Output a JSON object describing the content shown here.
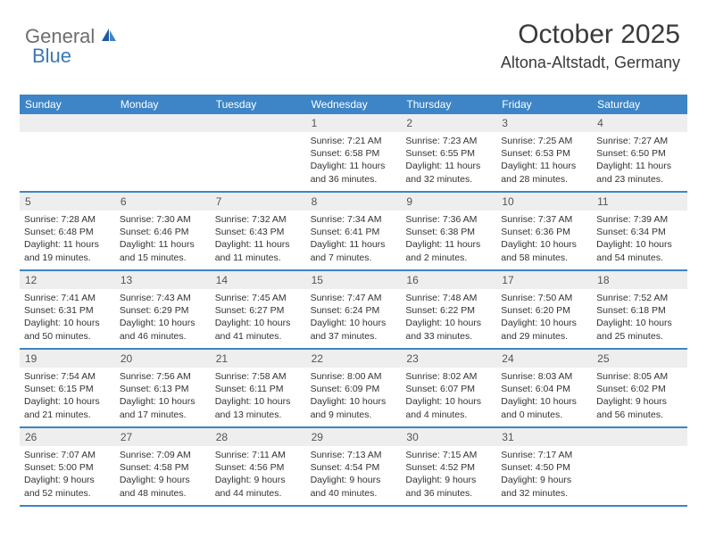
{
  "logo": {
    "text1": "General",
    "text2": "Blue"
  },
  "header": {
    "month_title": "October 2025",
    "location": "Altona-Altstadt, Germany"
  },
  "colors": {
    "header_bg": "#3d85c6",
    "header_text": "#ffffff",
    "daynum_bg": "#eeeeee",
    "border": "#3d85c6",
    "logo_gray": "#6e6e6e",
    "logo_blue": "#3b78b5"
  },
  "day_headers": [
    "Sunday",
    "Monday",
    "Tuesday",
    "Wednesday",
    "Thursday",
    "Friday",
    "Saturday"
  ],
  "weeks": [
    [
      {
        "num": "",
        "sunrise": "",
        "sunset": "",
        "daylight": ""
      },
      {
        "num": "",
        "sunrise": "",
        "sunset": "",
        "daylight": ""
      },
      {
        "num": "",
        "sunrise": "",
        "sunset": "",
        "daylight": ""
      },
      {
        "num": "1",
        "sunrise": "Sunrise: 7:21 AM",
        "sunset": "Sunset: 6:58 PM",
        "daylight": "Daylight: 11 hours and 36 minutes."
      },
      {
        "num": "2",
        "sunrise": "Sunrise: 7:23 AM",
        "sunset": "Sunset: 6:55 PM",
        "daylight": "Daylight: 11 hours and 32 minutes."
      },
      {
        "num": "3",
        "sunrise": "Sunrise: 7:25 AM",
        "sunset": "Sunset: 6:53 PM",
        "daylight": "Daylight: 11 hours and 28 minutes."
      },
      {
        "num": "4",
        "sunrise": "Sunrise: 7:27 AM",
        "sunset": "Sunset: 6:50 PM",
        "daylight": "Daylight: 11 hours and 23 minutes."
      }
    ],
    [
      {
        "num": "5",
        "sunrise": "Sunrise: 7:28 AM",
        "sunset": "Sunset: 6:48 PM",
        "daylight": "Daylight: 11 hours and 19 minutes."
      },
      {
        "num": "6",
        "sunrise": "Sunrise: 7:30 AM",
        "sunset": "Sunset: 6:46 PM",
        "daylight": "Daylight: 11 hours and 15 minutes."
      },
      {
        "num": "7",
        "sunrise": "Sunrise: 7:32 AM",
        "sunset": "Sunset: 6:43 PM",
        "daylight": "Daylight: 11 hours and 11 minutes."
      },
      {
        "num": "8",
        "sunrise": "Sunrise: 7:34 AM",
        "sunset": "Sunset: 6:41 PM",
        "daylight": "Daylight: 11 hours and 7 minutes."
      },
      {
        "num": "9",
        "sunrise": "Sunrise: 7:36 AM",
        "sunset": "Sunset: 6:38 PM",
        "daylight": "Daylight: 11 hours and 2 minutes."
      },
      {
        "num": "10",
        "sunrise": "Sunrise: 7:37 AM",
        "sunset": "Sunset: 6:36 PM",
        "daylight": "Daylight: 10 hours and 58 minutes."
      },
      {
        "num": "11",
        "sunrise": "Sunrise: 7:39 AM",
        "sunset": "Sunset: 6:34 PM",
        "daylight": "Daylight: 10 hours and 54 minutes."
      }
    ],
    [
      {
        "num": "12",
        "sunrise": "Sunrise: 7:41 AM",
        "sunset": "Sunset: 6:31 PM",
        "daylight": "Daylight: 10 hours and 50 minutes."
      },
      {
        "num": "13",
        "sunrise": "Sunrise: 7:43 AM",
        "sunset": "Sunset: 6:29 PM",
        "daylight": "Daylight: 10 hours and 46 minutes."
      },
      {
        "num": "14",
        "sunrise": "Sunrise: 7:45 AM",
        "sunset": "Sunset: 6:27 PM",
        "daylight": "Daylight: 10 hours and 41 minutes."
      },
      {
        "num": "15",
        "sunrise": "Sunrise: 7:47 AM",
        "sunset": "Sunset: 6:24 PM",
        "daylight": "Daylight: 10 hours and 37 minutes."
      },
      {
        "num": "16",
        "sunrise": "Sunrise: 7:48 AM",
        "sunset": "Sunset: 6:22 PM",
        "daylight": "Daylight: 10 hours and 33 minutes."
      },
      {
        "num": "17",
        "sunrise": "Sunrise: 7:50 AM",
        "sunset": "Sunset: 6:20 PM",
        "daylight": "Daylight: 10 hours and 29 minutes."
      },
      {
        "num": "18",
        "sunrise": "Sunrise: 7:52 AM",
        "sunset": "Sunset: 6:18 PM",
        "daylight": "Daylight: 10 hours and 25 minutes."
      }
    ],
    [
      {
        "num": "19",
        "sunrise": "Sunrise: 7:54 AM",
        "sunset": "Sunset: 6:15 PM",
        "daylight": "Daylight: 10 hours and 21 minutes."
      },
      {
        "num": "20",
        "sunrise": "Sunrise: 7:56 AM",
        "sunset": "Sunset: 6:13 PM",
        "daylight": "Daylight: 10 hours and 17 minutes."
      },
      {
        "num": "21",
        "sunrise": "Sunrise: 7:58 AM",
        "sunset": "Sunset: 6:11 PM",
        "daylight": "Daylight: 10 hours and 13 minutes."
      },
      {
        "num": "22",
        "sunrise": "Sunrise: 8:00 AM",
        "sunset": "Sunset: 6:09 PM",
        "daylight": "Daylight: 10 hours and 9 minutes."
      },
      {
        "num": "23",
        "sunrise": "Sunrise: 8:02 AM",
        "sunset": "Sunset: 6:07 PM",
        "daylight": "Daylight: 10 hours and 4 minutes."
      },
      {
        "num": "24",
        "sunrise": "Sunrise: 8:03 AM",
        "sunset": "Sunset: 6:04 PM",
        "daylight": "Daylight: 10 hours and 0 minutes."
      },
      {
        "num": "25",
        "sunrise": "Sunrise: 8:05 AM",
        "sunset": "Sunset: 6:02 PM",
        "daylight": "Daylight: 9 hours and 56 minutes."
      }
    ],
    [
      {
        "num": "26",
        "sunrise": "Sunrise: 7:07 AM",
        "sunset": "Sunset: 5:00 PM",
        "daylight": "Daylight: 9 hours and 52 minutes."
      },
      {
        "num": "27",
        "sunrise": "Sunrise: 7:09 AM",
        "sunset": "Sunset: 4:58 PM",
        "daylight": "Daylight: 9 hours and 48 minutes."
      },
      {
        "num": "28",
        "sunrise": "Sunrise: 7:11 AM",
        "sunset": "Sunset: 4:56 PM",
        "daylight": "Daylight: 9 hours and 44 minutes."
      },
      {
        "num": "29",
        "sunrise": "Sunrise: 7:13 AM",
        "sunset": "Sunset: 4:54 PM",
        "daylight": "Daylight: 9 hours and 40 minutes."
      },
      {
        "num": "30",
        "sunrise": "Sunrise: 7:15 AM",
        "sunset": "Sunset: 4:52 PM",
        "daylight": "Daylight: 9 hours and 36 minutes."
      },
      {
        "num": "31",
        "sunrise": "Sunrise: 7:17 AM",
        "sunset": "Sunset: 4:50 PM",
        "daylight": "Daylight: 9 hours and 32 minutes."
      },
      {
        "num": "",
        "sunrise": "",
        "sunset": "",
        "daylight": ""
      }
    ]
  ]
}
